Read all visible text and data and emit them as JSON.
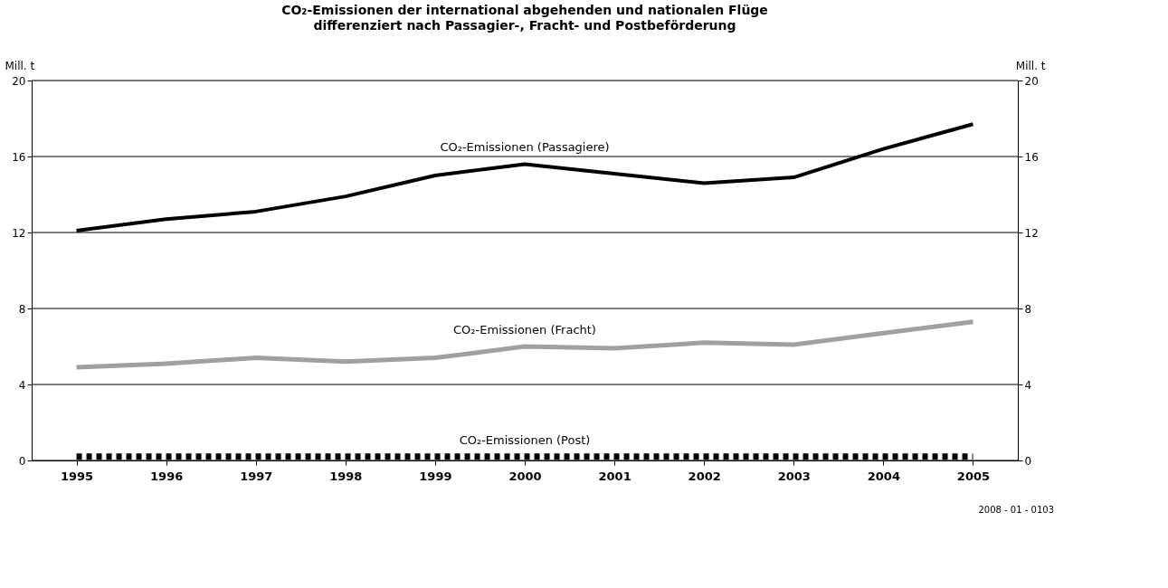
{
  "chart_data": {
    "type": "line",
    "title": "CO₂-Emissionen der international abgehenden und nationalen Flüge",
    "subtitle": "differenziert nach Passagier-, Fracht- und Postbeförderung",
    "ylabel": "Mill. t",
    "y2label": "Mill. t",
    "categories": [
      "1995",
      "1996",
      "1997",
      "1998",
      "1999",
      "2000",
      "2001",
      "2002",
      "2003",
      "2004",
      "2005"
    ],
    "series": [
      {
        "name": "CO₂-Emissionen (Passagiere)",
        "color": "#000000",
        "line_style": "solid",
        "values": [
          12.1,
          12.7,
          13.1,
          13.9,
          15.0,
          15.6,
          15.1,
          14.6,
          14.9,
          16.4,
          17.7
        ]
      },
      {
        "name": "CO₂-Emissionen (Fracht)",
        "color": "#a0a0a0",
        "line_style": "solid",
        "values": [
          4.9,
          5.1,
          5.4,
          5.2,
          5.4,
          6.0,
          5.9,
          6.2,
          6.1,
          6.7,
          7.3
        ]
      },
      {
        "name": "CO₂-Emissionen (Post)",
        "color": "#000000",
        "line_style": "dotted",
        "values": [
          0.2,
          0.2,
          0.2,
          0.2,
          0.2,
          0.2,
          0.2,
          0.2,
          0.2,
          0.2,
          0.2
        ]
      }
    ],
    "ylim": [
      0,
      20
    ],
    "yticks": [
      0,
      4,
      8,
      12,
      16,
      20
    ],
    "y2lim": [
      0,
      20
    ],
    "y2ticks": [
      0,
      4,
      8,
      12,
      16,
      20
    ],
    "grid": "y",
    "marker": "none",
    "annotations": [
      "2008 - 01 - 0103"
    ]
  }
}
